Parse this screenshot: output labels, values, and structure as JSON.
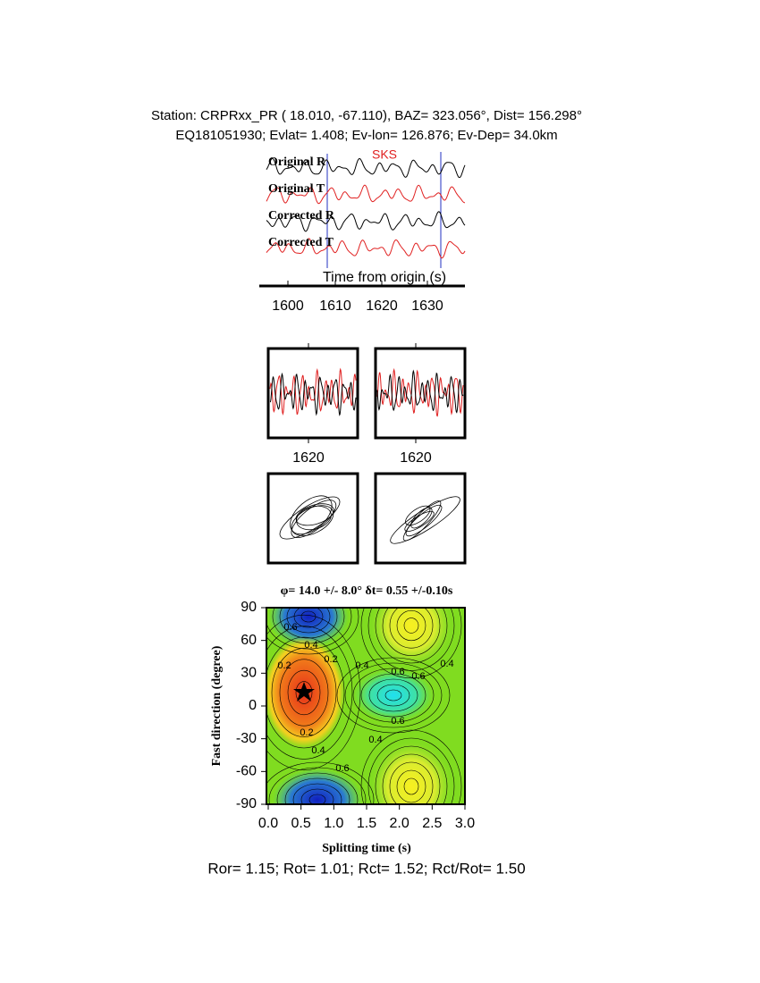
{
  "header": {
    "line1": "Station: CRPRxx_PR (  18.010,  -67.110), BAZ=  323.056°, Dist=  156.298°",
    "line2": "EQ181051930; Evlat=   1.408; Ev-lon= 126.876; Ev-Dep= 34.0km"
  },
  "traces": {
    "labels": [
      "Original R",
      "Original T",
      "Corrected R",
      "Corrected T"
    ],
    "phase": "SKS",
    "xlabel": "Time from origin (s)",
    "xticks": [
      "1600",
      "1610",
      "1620",
      "1630"
    ]
  },
  "windows": {
    "tick_labels": [
      "1620",
      "1620"
    ]
  },
  "grid_search": {
    "title": "φ= 14.0 +/- 8.0° δt= 0.55 +/-0.10s",
    "xlabel": "Splitting time (s)",
    "ylabel": "Fast direction (degree)",
    "xticks": [
      "0.0",
      "0.5",
      "1.0",
      "1.5",
      "2.0",
      "2.5",
      "3.0"
    ],
    "yticks": [
      "90",
      "60",
      "30",
      "0",
      "-30",
      "-60",
      "-90"
    ],
    "contour_labels": [
      "0.6",
      "0.4",
      "0.2",
      "0.2",
      "0.4",
      "0.6",
      "0.6",
      "0.4",
      "0.6",
      "0.2",
      "0.4",
      "0.4",
      "0.6"
    ]
  },
  "footer": "Ror= 1.15; Rot= 1.01; Rct= 1.52; Rct/Rot= 1.50"
}
